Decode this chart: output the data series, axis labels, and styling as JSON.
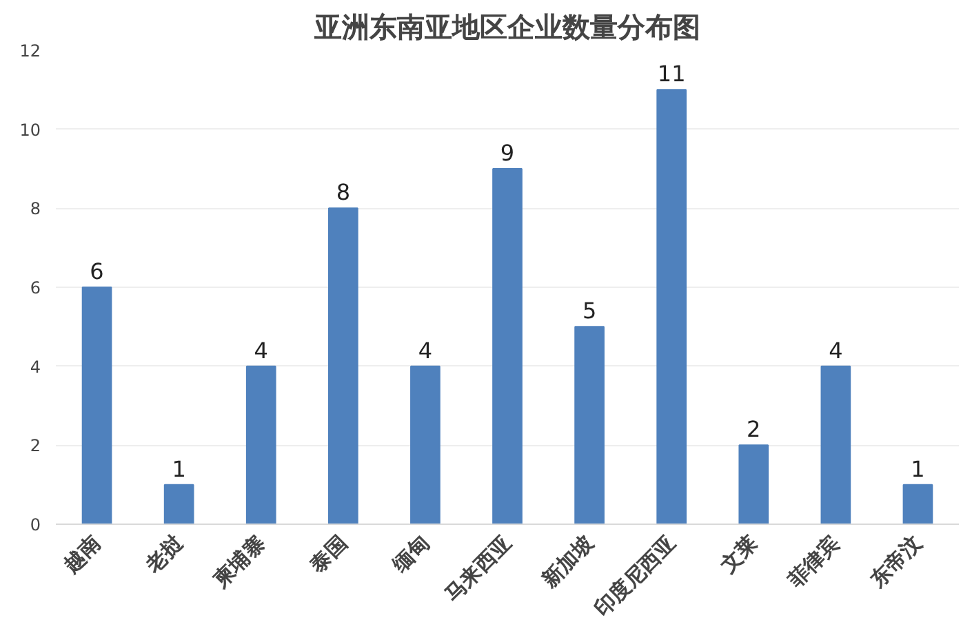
{
  "chart_data": {
    "type": "bar",
    "title": "亚洲东南亚地区企业数量分布图",
    "categories": [
      "越南",
      "老挝",
      "柬埔寨",
      "泰国",
      "缅甸",
      "马来西亚",
      "新加坡",
      "印度尼西亚",
      "文莱",
      "菲律宾",
      "东帝汶"
    ],
    "values": [
      6,
      1,
      4,
      8,
      4,
      9,
      5,
      11,
      2,
      4,
      1
    ],
    "color": "#4f81bd",
    "ylim": [
      0,
      12
    ],
    "yticks": [
      0,
      2,
      4,
      6,
      8,
      10,
      12
    ],
    "grid": "y",
    "data_labels": true
  }
}
